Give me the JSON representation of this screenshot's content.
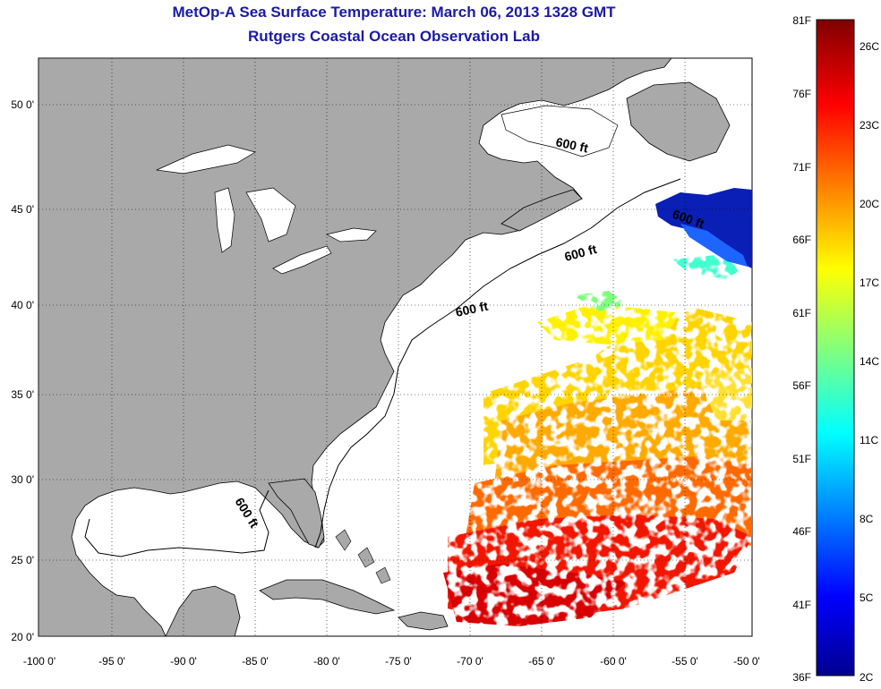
{
  "title_line1": "MetOp-A Sea Surface Temperature:  March 06, 2013 1328 GMT",
  "title_line2": "Rutgers Coastal Ocean Observation Lab",
  "longitude_ticks": [
    "-100 0'",
    "-95 0'",
    "-90 0'",
    "-85 0'",
    "-80 0'",
    "-75 0'",
    "-70 0'",
    "-65 0'",
    "-60 0'",
    "-55 0'",
    "-50 0'"
  ],
  "latitude_ticks": [
    "50 0'",
    "45 0'",
    "40 0'",
    "35 0'",
    "30 0'",
    "25 0'",
    "20 0'"
  ],
  "contour_labels": [
    "600 ft",
    "600 ft",
    "600 ft",
    "600 ft",
    "600 ft"
  ],
  "colorbar": {
    "fahrenheit_labels": [
      "81F",
      "76F",
      "71F",
      "66F",
      "61F",
      "56F",
      "51F",
      "46F",
      "41F",
      "36F"
    ],
    "celsius_labels": [
      "26C",
      "23C",
      "20C",
      "17C",
      "14C",
      "11C",
      "8C",
      "5C",
      "2C"
    ],
    "range_f": [
      36,
      81
    ],
    "range_c": [
      2,
      27
    ],
    "colormap": "jet"
  },
  "colors": {
    "land": "#a9a9a9",
    "ocean": "#ffffff",
    "title": "#1a1aa6"
  }
}
